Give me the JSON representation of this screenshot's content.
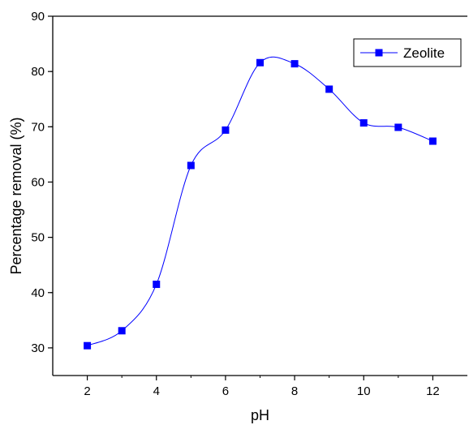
{
  "chart_data": {
    "type": "line",
    "title": "",
    "xlabel": "pH",
    "ylabel": "Percentage removal (%)",
    "xlim": [
      1,
      13
    ],
    "ylim": [
      25,
      90
    ],
    "x_ticks": [
      2,
      4,
      6,
      8,
      10,
      12
    ],
    "y_ticks": [
      30,
      40,
      50,
      60,
      70,
      80,
      90
    ],
    "grid": false,
    "legend_position": "top-right",
    "series": [
      {
        "name": "Zeolite",
        "color": "#0000ff",
        "marker": "square",
        "smooth": true,
        "x": [
          2,
          3,
          4,
          5,
          6,
          7,
          8,
          9,
          10,
          11,
          12
        ],
        "y": [
          30.4,
          33.1,
          41.5,
          63.0,
          69.4,
          81.6,
          81.4,
          76.8,
          70.7,
          69.9,
          67.4
        ]
      }
    ]
  }
}
